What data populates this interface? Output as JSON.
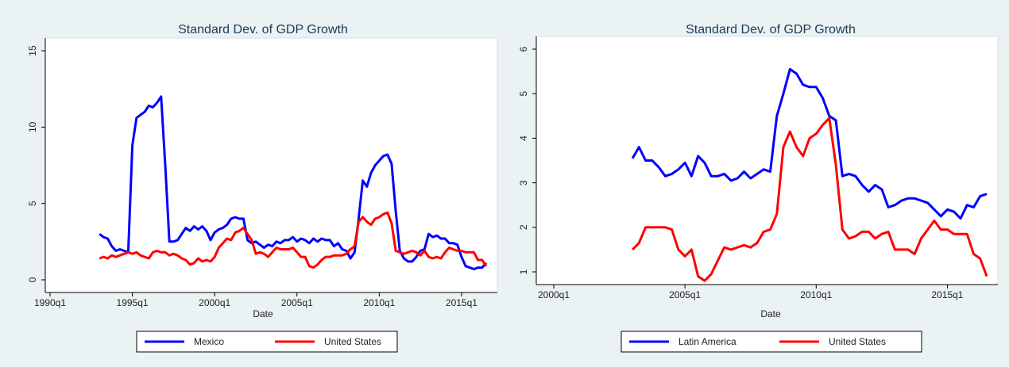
{
  "chart_data": [
    {
      "type": "line",
      "title": "Standard Dev. of GDP Growth",
      "x_label": "Date",
      "x": [
        "1993q1",
        "1993q2",
        "1993q3",
        "1993q4",
        "1994q1",
        "1994q2",
        "1994q3",
        "1994q4",
        "1995q1",
        "1995q2",
        "1995q3",
        "1995q4",
        "1996q1",
        "1996q2",
        "1996q3",
        "1996q4",
        "1997q1",
        "1997q2",
        "1997q3",
        "1997q4",
        "1998q1",
        "1998q2",
        "1998q3",
        "1998q4",
        "1999q1",
        "1999q2",
        "1999q3",
        "1999q4",
        "2000q1",
        "2000q2",
        "2000q3",
        "2000q4",
        "2001q1",
        "2001q2",
        "2001q3",
        "2001q4",
        "2002q1",
        "2002q2",
        "2002q3",
        "2002q4",
        "2003q1",
        "2003q2",
        "2003q3",
        "2003q4",
        "2004q1",
        "2004q2",
        "2004q3",
        "2004q4",
        "2005q1",
        "2005q2",
        "2005q3",
        "2005q4",
        "2006q1",
        "2006q2",
        "2006q3",
        "2006q4",
        "2007q1",
        "2007q2",
        "2007q3",
        "2007q4",
        "2008q1",
        "2008q2",
        "2008q3",
        "2008q4",
        "2009q1",
        "2009q2",
        "2009q3",
        "2009q4",
        "2010q1",
        "2010q2",
        "2010q3",
        "2010q4",
        "2011q1",
        "2011q2",
        "2011q3",
        "2011q4",
        "2012q1",
        "2012q2",
        "2012q3",
        "2012q4",
        "2013q1",
        "2013q2",
        "2013q3",
        "2013q4",
        "2014q1",
        "2014q2",
        "2014q3",
        "2014q4",
        "2015q1",
        "2015q2",
        "2015q3",
        "2015q4",
        "2016q1",
        "2016q2",
        "2016q3"
      ],
      "series": [
        {
          "name": "Mexico",
          "color": "#0000ff",
          "values": [
            3.0,
            2.8,
            2.7,
            2.2,
            1.9,
            2.0,
            1.9,
            1.8,
            8.8,
            10.6,
            10.8,
            11.0,
            11.4,
            11.3,
            11.6,
            12.0,
            7.5,
            2.5,
            2.5,
            2.6,
            3.0,
            3.4,
            3.2,
            3.5,
            3.3,
            3.5,
            3.2,
            2.6,
            3.1,
            3.3,
            3.4,
            3.6,
            4.0,
            4.1,
            4.0,
            4.0,
            2.6,
            2.4,
            2.5,
            2.3,
            2.1,
            2.3,
            2.2,
            2.5,
            2.4,
            2.6,
            2.6,
            2.8,
            2.5,
            2.7,
            2.6,
            2.4,
            2.7,
            2.5,
            2.7,
            2.6,
            2.6,
            2.2,
            2.4,
            2.0,
            1.9,
            1.4,
            1.8,
            4.0,
            6.5,
            6.1,
            7.0,
            7.5,
            7.8,
            8.1,
            8.2,
            7.6,
            4.5,
            1.9,
            1.4,
            1.2,
            1.2,
            1.5,
            1.9,
            2.0,
            3.0,
            2.8,
            2.9,
            2.7,
            2.7,
            2.4,
            2.4,
            2.3,
            1.5,
            0.9,
            0.8,
            0.7,
            0.8,
            0.8,
            1.1
          ]
        },
        {
          "name": "United States",
          "color": "#ff0000",
          "values": [
            1.4,
            1.5,
            1.4,
            1.6,
            1.5,
            1.6,
            1.7,
            1.8,
            1.7,
            1.8,
            1.6,
            1.5,
            1.4,
            1.8,
            1.9,
            1.8,
            1.8,
            1.6,
            1.7,
            1.6,
            1.4,
            1.3,
            1.0,
            1.1,
            1.4,
            1.2,
            1.3,
            1.2,
            1.5,
            2.1,
            2.4,
            2.7,
            2.6,
            3.1,
            3.2,
            3.4,
            3.0,
            2.6,
            1.7,
            1.8,
            1.7,
            1.5,
            1.8,
            2.1,
            2.0,
            2.0,
            2.0,
            2.1,
            1.8,
            1.5,
            1.5,
            0.9,
            0.8,
            1.0,
            1.3,
            1.5,
            1.5,
            1.6,
            1.6,
            1.6,
            1.7,
            2.0,
            2.2,
            3.8,
            4.1,
            3.8,
            3.6,
            4.0,
            4.1,
            4.3,
            4.4,
            3.7,
            1.9,
            1.8,
            1.7,
            1.8,
            1.9,
            1.8,
            1.6,
            1.9,
            1.5,
            1.4,
            1.5,
            1.4,
            1.8,
            2.1,
            2.0,
            1.9,
            1.9,
            1.8,
            1.8,
            1.8,
            1.3,
            1.3,
            0.9
          ]
        }
      ],
      "xlim": [
        "1990q1",
        "2016q3"
      ],
      "xticks": [
        "1990q1",
        "1995q1",
        "2000q1",
        "2005q1",
        "2010q1",
        "2015q1"
      ],
      "ylim": [
        0,
        15
      ],
      "yticks": [
        0,
        5,
        10,
        15
      ],
      "grid": false,
      "legend": "bottom"
    },
    {
      "type": "line",
      "title": "Standard Dev. of GDP Growth",
      "x_label": "Date",
      "x": [
        "2003q1",
        "2003q2",
        "2003q3",
        "2003q4",
        "2004q1",
        "2004q2",
        "2004q3",
        "2004q4",
        "2005q1",
        "2005q2",
        "2005q3",
        "2005q4",
        "2006q1",
        "2006q2",
        "2006q3",
        "2006q4",
        "2007q1",
        "2007q2",
        "2007q3",
        "2007q4",
        "2008q1",
        "2008q2",
        "2008q3",
        "2008q4",
        "2009q1",
        "2009q2",
        "2009q3",
        "2009q4",
        "2010q1",
        "2010q2",
        "2010q3",
        "2010q4",
        "2011q1",
        "2011q2",
        "2011q3",
        "2011q4",
        "2012q1",
        "2012q2",
        "2012q3",
        "2012q4",
        "2013q1",
        "2013q2",
        "2013q3",
        "2013q4",
        "2014q1",
        "2014q2",
        "2014q3",
        "2014q4",
        "2015q1",
        "2015q2",
        "2015q3",
        "2015q4",
        "2016q1",
        "2016q2",
        "2016q3"
      ],
      "series": [
        {
          "name": "Latin America",
          "color": "#0000ff",
          "values": [
            3.55,
            3.8,
            3.5,
            3.5,
            3.35,
            3.15,
            3.2,
            3.3,
            3.45,
            3.15,
            3.6,
            3.45,
            3.15,
            3.15,
            3.2,
            3.05,
            3.1,
            3.25,
            3.1,
            3.2,
            3.3,
            3.25,
            4.5,
            5.0,
            5.55,
            5.45,
            5.2,
            5.15,
            5.15,
            4.9,
            4.5,
            4.4,
            3.15,
            3.2,
            3.15,
            2.95,
            2.8,
            2.95,
            2.85,
            2.45,
            2.5,
            2.6,
            2.65,
            2.65,
            2.6,
            2.55,
            2.4,
            2.25,
            2.4,
            2.35,
            2.2,
            2.5,
            2.45,
            2.7,
            2.75
          ]
        },
        {
          "name": "United States",
          "color": "#ff0000",
          "values": [
            1.5,
            1.65,
            2.0,
            2.0,
            2.0,
            2.0,
            1.95,
            1.5,
            1.35,
            1.5,
            0.9,
            0.8,
            0.95,
            1.25,
            1.55,
            1.5,
            1.55,
            1.6,
            1.55,
            1.65,
            1.9,
            1.95,
            2.3,
            3.8,
            4.15,
            3.8,
            3.6,
            4.0,
            4.1,
            4.3,
            4.45,
            3.4,
            1.95,
            1.75,
            1.8,
            1.9,
            1.9,
            1.75,
            1.85,
            1.9,
            1.5,
            1.5,
            1.5,
            1.4,
            1.75,
            1.95,
            2.15,
            1.95,
            1.95,
            1.85,
            1.85,
            1.85,
            1.4,
            1.3,
            0.9
          ]
        }
      ],
      "xlim": [
        "2000q1",
        "2016q3"
      ],
      "xticks": [
        "2000q1",
        "2005q1",
        "2010q1",
        "2015q1"
      ],
      "ylim": [
        1,
        6
      ],
      "yticks": [
        1,
        2,
        3,
        4,
        5,
        6
      ],
      "grid": false,
      "legend": "bottom"
    }
  ]
}
